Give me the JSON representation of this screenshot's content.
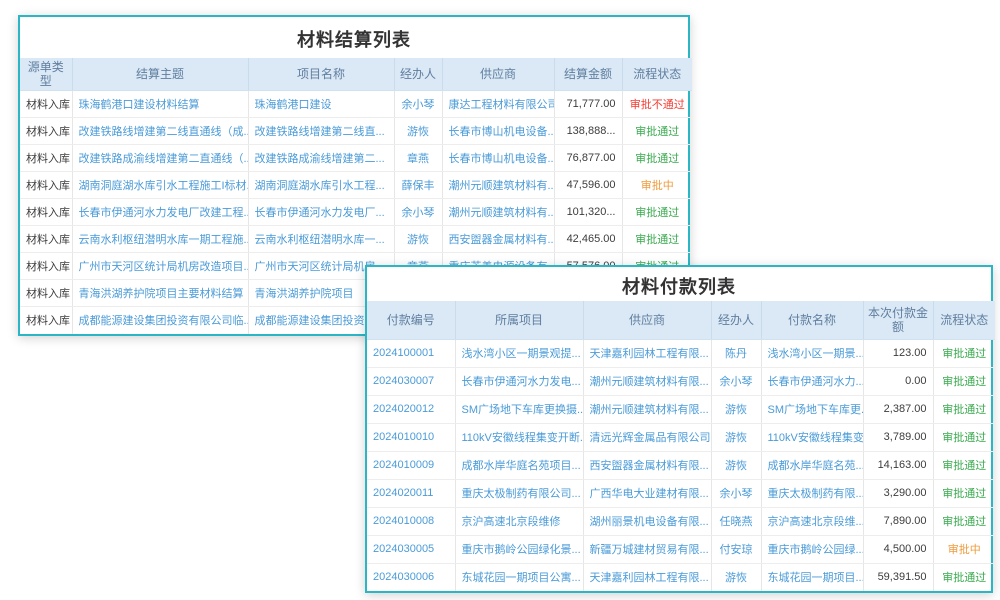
{
  "colors": {
    "accent_border": "#2bb6c6",
    "header_bg": "#dbe9f6",
    "header_text": "#5f7e9e",
    "link_text": "#4a9bd8",
    "body_text": "#3c3c3c",
    "status": {
      "审批通过": "#3aaa4f",
      "审批不通过": "#f43b31",
      "审批中": "#f09b3c"
    }
  },
  "settlement_table": {
    "title": "材料结算列表",
    "columns": [
      "源单类型",
      "结算主题",
      "项目名称",
      "经办人",
      "供应商",
      "结算金额",
      "流程状态"
    ],
    "rows": [
      [
        "材料入库",
        "珠海鹤港口建设材料结算",
        "珠海鹤港口建设",
        "余小琴",
        "康达工程材料有限公司",
        "71,777.00",
        "审批不通过"
      ],
      [
        "材料入库",
        "改建铁路线增建第二线直通线（成...",
        "改建铁路线增建第二线直...",
        "游恢",
        "长春市博山机电设备...",
        "138,888...",
        "审批通过"
      ],
      [
        "材料入库",
        "改建铁路成渝线增建第二直通线（...",
        "改建铁路成渝线增建第二...",
        "章燕",
        "长春市博山机电设备...",
        "76,877.00",
        "审批通过"
      ],
      [
        "材料入库",
        "湖南洞庭湖水库引水工程施工I标材...",
        "湖南洞庭湖水库引水工程...",
        "薛保丰",
        "潮州元顺建筑材料有...",
        "47,596.00",
        "审批中"
      ],
      [
        "材料入库",
        "长春市伊通河水力发电厂改建工程...",
        "长春市伊通河水力发电厂...",
        "余小琴",
        "潮州元顺建筑材料有...",
        "101,320...",
        "审批通过"
      ],
      [
        "材料入库",
        "云南水利枢纽潜明水库一期工程施...",
        "云南水利枢纽潜明水库一...",
        "游恢",
        "西安盥器金属材料有...",
        "42,465.00",
        "审批通过"
      ],
      [
        "材料入库",
        "广州市天河区统计局机房改造项目...",
        "广州市天河区统计局机房",
        "章燕",
        "重庆芝善电源设备有",
        "57,576.00",
        "审批通过"
      ],
      [
        "材料入库",
        "青海洪湖养护院项目主要材料结算",
        "青海洪湖养护院项目",
        "",
        "",
        "",
        ""
      ],
      [
        "材料入库",
        "成都能源建设集团投资有限公司临...",
        "成都能源建设集团投资有",
        "",
        "",
        "",
        ""
      ]
    ]
  },
  "payment_table": {
    "title": "材料付款列表",
    "columns": [
      "付款编号",
      "所属项目",
      "供应商",
      "经办人",
      "付款名称",
      "本次付款金额",
      "流程状态"
    ],
    "rows": [
      [
        "2024100001",
        "浅水湾小区一期景观提...",
        "天津嘉利园林工程有限...",
        "陈丹",
        "浅水湾小区一期景...",
        "123.00",
        "审批通过"
      ],
      [
        "2024030007",
        "长春市伊通河水力发电...",
        "潮州元顺建筑材料有限...",
        "余小琴",
        "长春市伊通河水力...",
        "0.00",
        "审批通过"
      ],
      [
        "2024020012",
        "SM广场地下车库更换摄...",
        "潮州元顺建筑材料有限...",
        "游恢",
        "SM广场地下车库更...",
        "2,387.00",
        "审批通过"
      ],
      [
        "2024010010",
        "110kV安徽线程集变开断...",
        "清远光辉金属品有限公司",
        "游恢",
        "110kV安徽线程集变...",
        "3,789.00",
        "审批通过"
      ],
      [
        "2024010009",
        "成都水岸华庭名苑项目...",
        "西安盥器金属材料有限...",
        "游恢",
        "成都水岸华庭名苑...",
        "14,163.00",
        "审批通过"
      ],
      [
        "2024020011",
        "重庆太极制药有限公司...",
        "广西华电大业建材有限...",
        "余小琴",
        "重庆太极制药有限...",
        "3,290.00",
        "审批通过"
      ],
      [
        "2024010008",
        "京沪高速北京段维修",
        "湖州丽景机电设备有限...",
        "任晓燕",
        "京沪高速北京段维...",
        "7,890.00",
        "审批通过"
      ],
      [
        "2024030005",
        "重庆市鹅岭公园绿化景...",
        "新疆万城建材贸易有限...",
        "付安琼",
        "重庆市鹅岭公园绿...",
        "4,500.00",
        "审批中"
      ],
      [
        "2024030006",
        "东城花园一期项目公寓...",
        "天津嘉利园林工程有限...",
        "游恢",
        "东城花园一期项目...",
        "59,391.50",
        "审批通过"
      ]
    ]
  }
}
